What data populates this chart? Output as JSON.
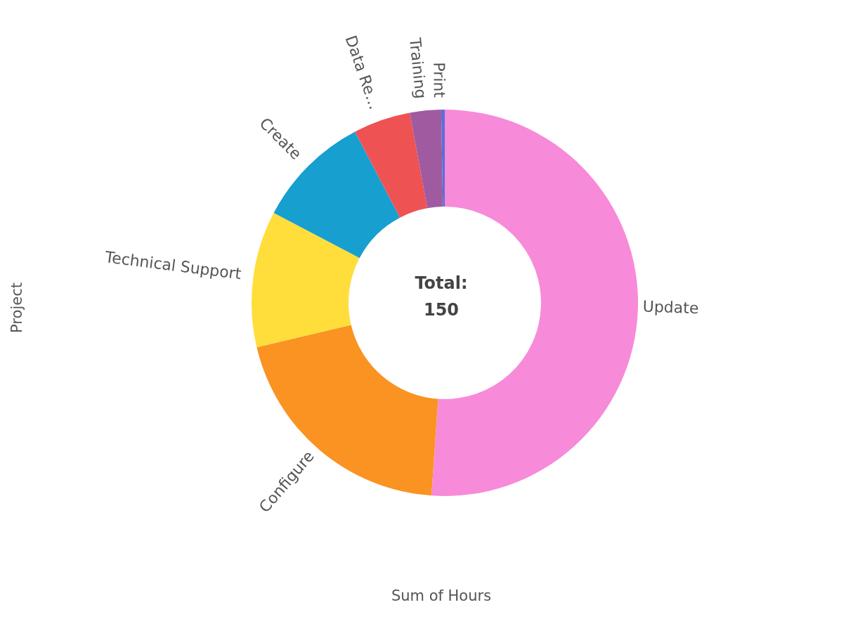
{
  "chart_data": {
    "type": "donut",
    "categories": [
      "Update",
      "Configure",
      "Technical Support",
      "Create",
      "Data Re…",
      "Training",
      "Print"
    ],
    "values": [
      51.1,
      20.2,
      11.4,
      9.6,
      4.8,
      2.6,
      0.3
    ],
    "colors": [
      "#f78ad9",
      "#fa9322",
      "#ffde3c",
      "#169fcf",
      "#ee5253",
      "#a05aa0",
      "#5a6fd8"
    ],
    "xlabel": "Sum of Hours",
    "ylabel": "Project",
    "annotations": [
      "Total:",
      "150"
    ],
    "legend": false
  }
}
